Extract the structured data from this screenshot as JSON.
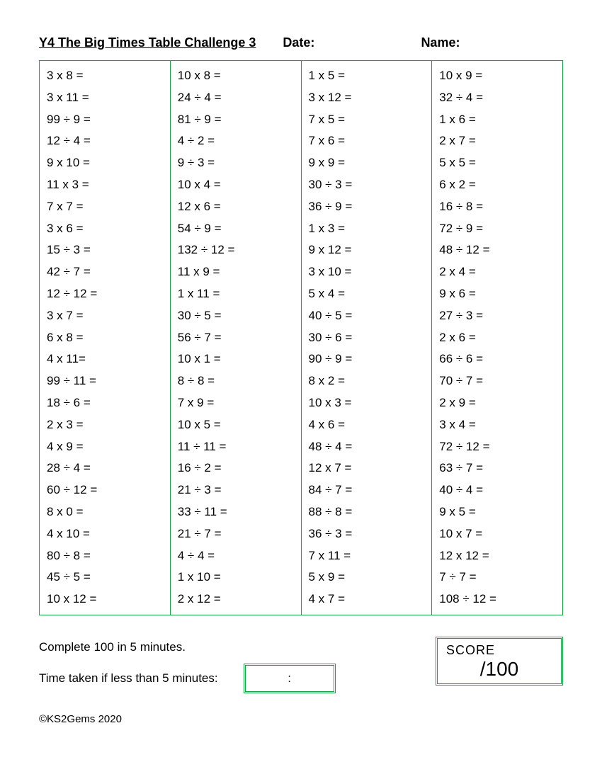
{
  "header": {
    "title": "Y4 The Big Times Table Challenge 3",
    "date_label": "Date:",
    "name_label": "Name:"
  },
  "table": {
    "border_color": "#19a24a",
    "font_size": 17,
    "columns": [
      [
        "3 x 8 =",
        "3 x 11 =",
        "99 ÷ 9 =",
        "12 ÷ 4 =",
        "9 x 10 =",
        "11 x 3 =",
        "7 x 7 =",
        "3 x 6 =",
        "15 ÷ 3 =",
        "42 ÷ 7 =",
        "12 ÷ 12 =",
        "3 x 7 =",
        "6 x 8 =",
        "4 x 11=",
        "99 ÷ 11 =",
        "18 ÷ 6 =",
        "2 x 3 =",
        "4 x 9 =",
        "28 ÷ 4 =",
        "60 ÷ 12 =",
        "8 x 0 =",
        "4 x 10 =",
        "80 ÷ 8 =",
        "45 ÷ 5 =",
        "10 x 12 ="
      ],
      [
        "10 x 8 =",
        "24 ÷ 4 =",
        "81 ÷ 9 =",
        "4 ÷ 2 =",
        "9 ÷ 3 =",
        "10 x 4 =",
        "12 x 6 =",
        "54 ÷ 9 =",
        "132 ÷ 12 =",
        "11 x 9 =",
        "1 x 11 =",
        "30 ÷ 5 =",
        "56 ÷ 7 =",
        "10 x 1 =",
        "8 ÷ 8 =",
        "7 x 9 =",
        "10 x 5 =",
        "11 ÷ 11 =",
        "16 ÷ 2 =",
        "21 ÷ 3 =",
        "33 ÷ 11 =",
        "21 ÷ 7 =",
        "4  ÷ 4 =",
        "1 x 10 =",
        "2 x 12 ="
      ],
      [
        "1  x 5 =",
        "3 x 12 =",
        "7 x 5 =",
        "7 x 6 =",
        "9 x 9 =",
        "30 ÷ 3 =",
        "36 ÷ 9 =",
        "1  x 3 =",
        "9 x 12 =",
        "3 x 10 =",
        "5 x 4 =",
        "40 ÷ 5 =",
        "30 ÷ 6 =",
        "90 ÷ 9 =",
        "8  x 2 =",
        "10 x 3 =",
        "4 x 6 =",
        "48 ÷ 4 =",
        "12 x 7 =",
        "84 ÷ 7 =",
        "88  ÷ 8 =",
        "36  ÷ 3 =",
        "7 x 11 =",
        "5  x 9 =",
        "4 x 7 ="
      ],
      [
        "10 x 9 =",
        "32 ÷ 4 =",
        "1 x 6 =",
        "2 x 7 =",
        "5 x 5 =",
        "6 x 2 =",
        "16 ÷ 8 =",
        "72 ÷ 9 =",
        "48 ÷ 12 =",
        "2  x 4 =",
        "9 x 6 =",
        "27 ÷ 3 =",
        "2 x 6 =",
        "66 ÷ 6 =",
        "70 ÷ 7 =",
        "2 x 9 =",
        "3 x 4 =",
        "72 ÷ 12 =",
        "63 ÷ 7 =",
        "40 ÷ 4 =",
        "9 x 5 =",
        "10 x 7 =",
        "12 x 12 =",
        "7 ÷ 7 =",
        "108 ÷ 12 ="
      ]
    ]
  },
  "footer": {
    "instruction": "Complete 100 in 5 minutes.",
    "time_label": "Time taken if less than 5 minutes:",
    "time_value": ":",
    "score_label": "SCORE",
    "score_value": "/100",
    "copyright": "©KS2Gems 2020"
  },
  "colors": {
    "accent": "#19a24a",
    "background": "#ffffff",
    "text": "#000000"
  }
}
